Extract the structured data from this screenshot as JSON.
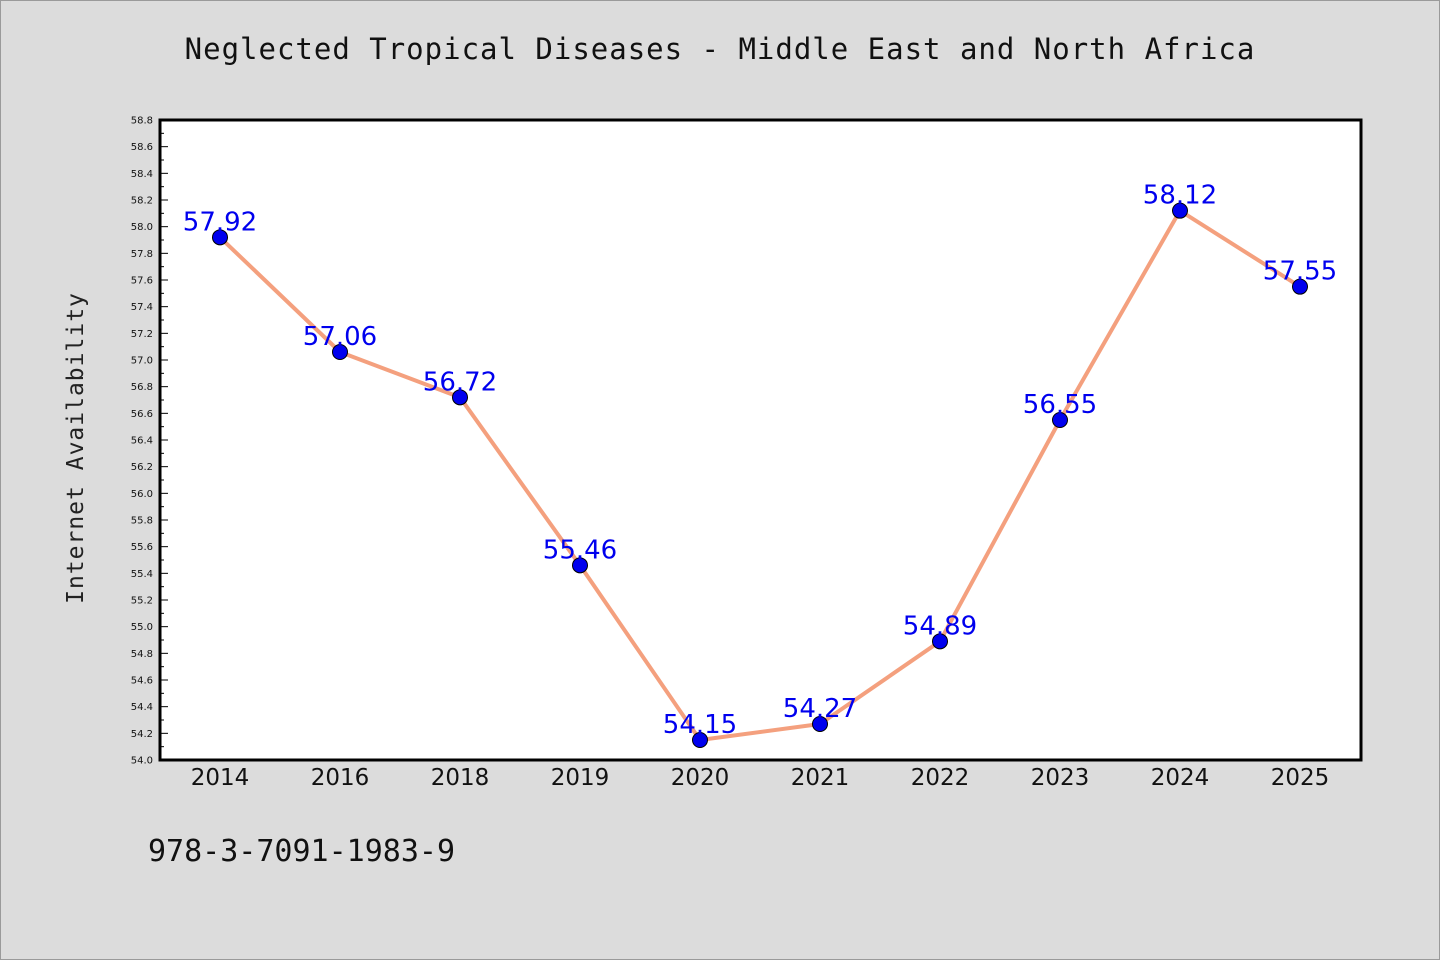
{
  "chart_data": {
    "type": "line",
    "title": "Neglected Tropical Diseases - Middle East and North Africa",
    "xlabel": "",
    "ylabel": "Internet Availability",
    "categories": [
      "2014",
      "2016",
      "2018",
      "2019",
      "2020",
      "2021",
      "2022",
      "2023",
      "2024",
      "2025"
    ],
    "series": [
      {
        "values": [
          57.92,
          57.06,
          56.72,
          55.46,
          54.15,
          54.27,
          54.89,
          56.55,
          58.12,
          57.55
        ],
        "labels": [
          "57.92",
          "57.06",
          "56.72",
          "55.46",
          "54.15",
          "54.27",
          "54.89",
          "56.55",
          "58.12",
          "57.55"
        ],
        "line_color": "#f4a07e",
        "marker_color": "#0000ee",
        "label_color": "#0000ee"
      }
    ],
    "ylim": [
      54.0,
      58.8
    ],
    "yticks": [
      "54.0",
      "54.2",
      "54.4",
      "54.6",
      "54.8",
      "55.0",
      "55.2",
      "55.4",
      "55.6",
      "55.8",
      "56.0",
      "56.2",
      "56.4",
      "56.6",
      "56.8",
      "57.0",
      "57.2",
      "57.4",
      "57.6",
      "57.8",
      "58.0",
      "58.2",
      "58.4",
      "58.6",
      "58.8"
    ],
    "grid": false,
    "legend": "none"
  },
  "footer": {
    "code": "978-3-7091-1983-9"
  }
}
